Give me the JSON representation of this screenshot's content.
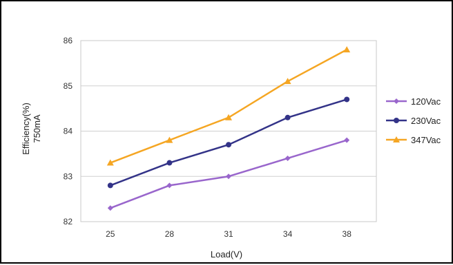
{
  "chart_data": {
    "type": "line",
    "title": "",
    "xlabel": "Load(V)",
    "ylabel": "Efficiency(%)",
    "ylabel_sub": "750mA",
    "categories": [
      "25",
      "28",
      "31",
      "34",
      "38"
    ],
    "ylim": [
      82,
      86
    ],
    "yticks": [
      "82",
      "83",
      "84",
      "85",
      "86"
    ],
    "grid": "horizontal",
    "legend_position": "right",
    "series": [
      {
        "name": "120Vac",
        "color": "#9966cc",
        "marker": "diamond",
        "values": [
          82.3,
          82.8,
          83.0,
          83.4,
          83.8
        ]
      },
      {
        "name": "230Vac",
        "color": "#333388",
        "marker": "circle",
        "values": [
          82.8,
          83.3,
          83.7,
          84.3,
          84.7
        ]
      },
      {
        "name": "347Vac",
        "color": "#f5a623",
        "marker": "triangle",
        "values": [
          83.3,
          83.8,
          84.3,
          85.1,
          85.8
        ]
      }
    ]
  }
}
